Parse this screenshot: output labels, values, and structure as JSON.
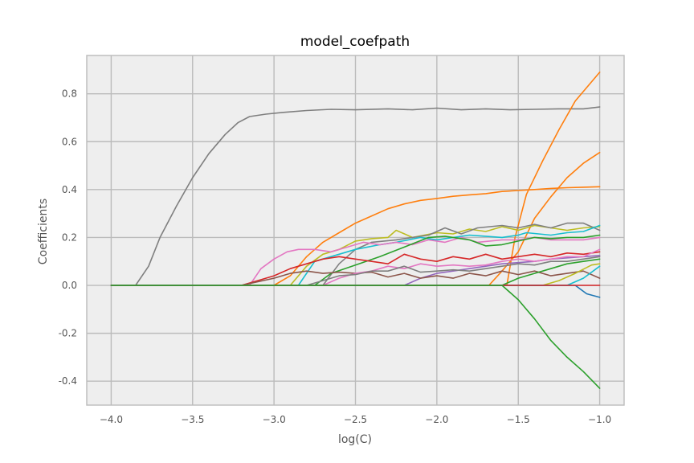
{
  "chart_data": {
    "type": "line",
    "title": "model_coefpath",
    "xlabel": "log(C)",
    "ylabel": "Coefficients",
    "xlim": [
      -4.15,
      -0.85
    ],
    "ylim": [
      -0.5,
      0.96
    ],
    "grid": true,
    "xticks": [
      -4.0,
      -3.5,
      -3.0,
      -2.5,
      -2.0,
      -1.5,
      -1.0
    ],
    "xtick_labels": [
      "−4.0",
      "−3.5",
      "−3.0",
      "−2.5",
      "−2.0",
      "−1.5",
      "−1.0"
    ],
    "yticks": [
      -0.4,
      -0.2,
      0.0,
      0.2,
      0.4,
      0.6,
      0.8
    ],
    "ytick_labels": [
      "-0.4",
      "-0.2",
      "0.0",
      "0.2",
      "0.4",
      "0.6",
      "0.8"
    ],
    "series": [
      {
        "color": "#7f7f7f",
        "points": [
          [
            -4.0,
            0.0
          ],
          [
            -3.85,
            0.0
          ],
          [
            -3.77,
            0.08
          ],
          [
            -3.7,
            0.2
          ],
          [
            -3.6,
            0.33
          ],
          [
            -3.5,
            0.45
          ],
          [
            -3.4,
            0.55
          ],
          [
            -3.3,
            0.63
          ],
          [
            -3.22,
            0.68
          ],
          [
            -3.15,
            0.705
          ],
          [
            -3.05,
            0.715
          ],
          [
            -2.95,
            0.722
          ],
          [
            -2.8,
            0.73
          ],
          [
            -2.65,
            0.735
          ],
          [
            -2.5,
            0.733
          ],
          [
            -2.3,
            0.737
          ],
          [
            -2.15,
            0.733
          ],
          [
            -2.0,
            0.74
          ],
          [
            -1.85,
            0.733
          ],
          [
            -1.7,
            0.737
          ],
          [
            -1.55,
            0.733
          ],
          [
            -1.4,
            0.735
          ],
          [
            -1.25,
            0.737
          ],
          [
            -1.1,
            0.737
          ],
          [
            -1.0,
            0.745
          ]
        ]
      },
      {
        "color": "#ff7f0e",
        "points": [
          [
            -4.0,
            0.0
          ],
          [
            -3.0,
            0.0
          ],
          [
            -2.9,
            0.04
          ],
          [
            -2.8,
            0.12
          ],
          [
            -2.7,
            0.18
          ],
          [
            -2.6,
            0.22
          ],
          [
            -2.5,
            0.26
          ],
          [
            -2.4,
            0.29
          ],
          [
            -2.3,
            0.32
          ],
          [
            -2.2,
            0.34
          ],
          [
            -2.1,
            0.355
          ],
          [
            -2.0,
            0.363
          ],
          [
            -1.9,
            0.372
          ],
          [
            -1.8,
            0.378
          ],
          [
            -1.7,
            0.383
          ],
          [
            -1.6,
            0.392
          ],
          [
            -1.5,
            0.396
          ],
          [
            -1.4,
            0.4
          ],
          [
            -1.3,
            0.405
          ],
          [
            -1.2,
            0.408
          ],
          [
            -1.1,
            0.41
          ],
          [
            -1.0,
            0.412
          ]
        ]
      },
      {
        "color": "#ff7f0e",
        "points": [
          [
            -4.0,
            0.0
          ],
          [
            -1.57,
            0.0
          ],
          [
            -1.52,
            0.2
          ],
          [
            -1.45,
            0.38
          ],
          [
            -1.35,
            0.52
          ],
          [
            -1.25,
            0.65
          ],
          [
            -1.15,
            0.77
          ],
          [
            -1.0,
            0.89
          ]
        ]
      },
      {
        "color": "#ff7f0e",
        "points": [
          [
            -4.0,
            0.0
          ],
          [
            -1.68,
            0.0
          ],
          [
            -1.6,
            0.06
          ],
          [
            -1.5,
            0.14
          ],
          [
            -1.4,
            0.28
          ],
          [
            -1.3,
            0.37
          ],
          [
            -1.2,
            0.45
          ],
          [
            -1.1,
            0.51
          ],
          [
            -1.0,
            0.555
          ]
        ]
      },
      {
        "color": "#bcbd22",
        "points": [
          [
            -4.0,
            0.0
          ],
          [
            -2.9,
            0.0
          ],
          [
            -2.8,
            0.08
          ],
          [
            -2.7,
            0.13
          ],
          [
            -2.6,
            0.15
          ],
          [
            -2.5,
            0.185
          ],
          [
            -2.4,
            0.195
          ],
          [
            -2.3,
            0.2
          ],
          [
            -2.25,
            0.23
          ],
          [
            -2.15,
            0.2
          ],
          [
            -2.0,
            0.22
          ],
          [
            -1.9,
            0.215
          ],
          [
            -1.8,
            0.235
          ],
          [
            -1.7,
            0.225
          ],
          [
            -1.6,
            0.245
          ],
          [
            -1.5,
            0.23
          ],
          [
            -1.4,
            0.25
          ],
          [
            -1.3,
            0.24
          ],
          [
            -1.2,
            0.23
          ],
          [
            -1.1,
            0.24
          ],
          [
            -1.0,
            0.245
          ]
        ]
      },
      {
        "color": "#7f7f7f",
        "points": [
          [
            -4.0,
            0.0
          ],
          [
            -2.7,
            0.0
          ],
          [
            -2.6,
            0.09
          ],
          [
            -2.5,
            0.15
          ],
          [
            -2.4,
            0.18
          ],
          [
            -2.25,
            0.19
          ],
          [
            -2.15,
            0.2
          ],
          [
            -2.05,
            0.21
          ],
          [
            -1.95,
            0.24
          ],
          [
            -1.85,
            0.215
          ],
          [
            -1.75,
            0.24
          ],
          [
            -1.6,
            0.25
          ],
          [
            -1.5,
            0.24
          ],
          [
            -1.4,
            0.255
          ],
          [
            -1.3,
            0.24
          ],
          [
            -1.2,
            0.26
          ],
          [
            -1.1,
            0.26
          ],
          [
            -1.0,
            0.23
          ]
        ]
      },
      {
        "color": "#17becf",
        "points": [
          [
            -4.0,
            0.0
          ],
          [
            -2.85,
            0.0
          ],
          [
            -2.75,
            0.1
          ],
          [
            -2.6,
            0.13
          ],
          [
            -2.5,
            0.15
          ],
          [
            -2.35,
            0.17
          ],
          [
            -2.25,
            0.18
          ],
          [
            -2.1,
            0.2
          ],
          [
            -2.0,
            0.19
          ],
          [
            -1.9,
            0.2
          ],
          [
            -1.8,
            0.21
          ],
          [
            -1.7,
            0.205
          ],
          [
            -1.6,
            0.2
          ],
          [
            -1.5,
            0.21
          ],
          [
            -1.45,
            0.22
          ],
          [
            -1.3,
            0.21
          ],
          [
            -1.2,
            0.22
          ],
          [
            -1.1,
            0.225
          ],
          [
            -1.0,
            0.25
          ]
        ]
      },
      {
        "color": "#e377c2",
        "points": [
          [
            -4.0,
            0.0
          ],
          [
            -3.15,
            0.0
          ],
          [
            -3.08,
            0.07
          ],
          [
            -3.0,
            0.11
          ],
          [
            -2.92,
            0.14
          ],
          [
            -2.85,
            0.15
          ],
          [
            -2.75,
            0.15
          ],
          [
            -2.65,
            0.14
          ],
          [
            -2.55,
            0.16
          ],
          [
            -2.45,
            0.18
          ],
          [
            -2.35,
            0.17
          ],
          [
            -2.25,
            0.18
          ],
          [
            -2.15,
            0.17
          ],
          [
            -2.05,
            0.19
          ],
          [
            -1.95,
            0.18
          ],
          [
            -1.85,
            0.2
          ],
          [
            -1.75,
            0.18
          ],
          [
            -1.6,
            0.19
          ],
          [
            -1.5,
            0.19
          ],
          [
            -1.4,
            0.2
          ],
          [
            -1.3,
            0.19
          ],
          [
            -1.2,
            0.19
          ],
          [
            -1.1,
            0.19
          ],
          [
            -1.0,
            0.2
          ]
        ]
      },
      {
        "color": "#2ca02c",
        "points": [
          [
            -4.0,
            0.0
          ],
          [
            -2.75,
            0.0
          ],
          [
            -2.65,
            0.05
          ],
          [
            -2.5,
            0.085
          ],
          [
            -2.35,
            0.12
          ],
          [
            -2.2,
            0.16
          ],
          [
            -2.05,
            0.2
          ],
          [
            -1.95,
            0.205
          ],
          [
            -1.8,
            0.19
          ],
          [
            -1.7,
            0.165
          ],
          [
            -1.6,
            0.17
          ],
          [
            -1.5,
            0.185
          ],
          [
            -1.4,
            0.2
          ],
          [
            -1.3,
            0.195
          ],
          [
            -1.2,
            0.2
          ],
          [
            -1.1,
            0.2
          ],
          [
            -1.0,
            0.21
          ]
        ]
      },
      {
        "color": "#9467bd",
        "points": [
          [
            -4.0,
            0.0
          ],
          [
            -2.2,
            0.0
          ],
          [
            -2.1,
            0.03
          ],
          [
            -2.0,
            0.05
          ],
          [
            -1.9,
            0.06
          ],
          [
            -1.8,
            0.07
          ],
          [
            -1.7,
            0.08
          ],
          [
            -1.6,
            0.09
          ],
          [
            -1.5,
            0.095
          ],
          [
            -1.4,
            0.1
          ],
          [
            -1.3,
            0.11
          ],
          [
            -1.2,
            0.115
          ],
          [
            -1.1,
            0.12
          ],
          [
            -1.0,
            0.125
          ]
        ]
      },
      {
        "color": "#d62728",
        "points": [
          [
            -4.0,
            0.0
          ],
          [
            -3.2,
            0.0
          ],
          [
            -3.1,
            0.02
          ],
          [
            -3.0,
            0.04
          ],
          [
            -2.9,
            0.07
          ],
          [
            -2.8,
            0.09
          ],
          [
            -2.7,
            0.11
          ],
          [
            -2.6,
            0.12
          ],
          [
            -2.5,
            0.11
          ],
          [
            -2.4,
            0.1
          ],
          [
            -2.3,
            0.09
          ],
          [
            -2.2,
            0.13
          ],
          [
            -2.1,
            0.11
          ],
          [
            -2.0,
            0.1
          ],
          [
            -1.9,
            0.12
          ],
          [
            -1.8,
            0.11
          ],
          [
            -1.7,
            0.13
          ],
          [
            -1.6,
            0.11
          ],
          [
            -1.5,
            0.12
          ],
          [
            -1.4,
            0.13
          ],
          [
            -1.3,
            0.12
          ],
          [
            -1.2,
            0.135
          ],
          [
            -1.1,
            0.13
          ],
          [
            -1.0,
            0.14
          ]
        ]
      },
      {
        "color": "#8c564b",
        "points": [
          [
            -4.0,
            0.0
          ],
          [
            -3.2,
            0.0
          ],
          [
            -3.0,
            0.03
          ],
          [
            -2.9,
            0.05
          ],
          [
            -2.8,
            0.06
          ],
          [
            -2.7,
            0.05
          ],
          [
            -2.6,
            0.055
          ],
          [
            -2.5,
            0.05
          ],
          [
            -2.4,
            0.055
          ],
          [
            -2.3,
            0.035
          ],
          [
            -2.2,
            0.05
          ],
          [
            -2.1,
            0.03
          ],
          [
            -2.0,
            0.04
          ],
          [
            -1.9,
            0.03
          ],
          [
            -1.8,
            0.05
          ],
          [
            -1.7,
            0.04
          ],
          [
            -1.6,
            0.06
          ],
          [
            -1.5,
            0.045
          ],
          [
            -1.4,
            0.06
          ],
          [
            -1.3,
            0.04
          ],
          [
            -1.2,
            0.05
          ],
          [
            -1.1,
            0.06
          ],
          [
            -1.0,
            0.03
          ]
        ]
      },
      {
        "color": "#e377c2",
        "points": [
          [
            -4.0,
            0.0
          ],
          [
            -2.7,
            0.0
          ],
          [
            -2.6,
            0.03
          ],
          [
            -2.5,
            0.05
          ],
          [
            -2.4,
            0.06
          ],
          [
            -2.3,
            0.08
          ],
          [
            -2.2,
            0.07
          ],
          [
            -2.1,
            0.09
          ],
          [
            -2.0,
            0.08
          ],
          [
            -1.9,
            0.085
          ],
          [
            -1.8,
            0.08
          ],
          [
            -1.7,
            0.085
          ],
          [
            -1.6,
            0.1
          ],
          [
            -1.5,
            0.11
          ],
          [
            -1.4,
            0.1
          ],
          [
            -1.3,
            0.11
          ],
          [
            -1.2,
            0.12
          ],
          [
            -1.1,
            0.12
          ],
          [
            -1.0,
            0.15
          ]
        ]
      },
      {
        "color": "#7f7f7f",
        "points": [
          [
            -4.0,
            0.0
          ],
          [
            -2.8,
            0.0
          ],
          [
            -2.7,
            0.02
          ],
          [
            -2.6,
            0.04
          ],
          [
            -2.5,
            0.045
          ],
          [
            -2.4,
            0.06
          ],
          [
            -2.3,
            0.06
          ],
          [
            -2.2,
            0.08
          ],
          [
            -2.1,
            0.055
          ],
          [
            -2.0,
            0.06
          ],
          [
            -1.9,
            0.065
          ],
          [
            -1.8,
            0.06
          ],
          [
            -1.7,
            0.07
          ],
          [
            -1.6,
            0.08
          ],
          [
            -1.5,
            0.09
          ],
          [
            -1.4,
            0.085
          ],
          [
            -1.3,
            0.1
          ],
          [
            -1.2,
            0.1
          ],
          [
            -1.1,
            0.11
          ],
          [
            -1.0,
            0.12
          ]
        ]
      },
      {
        "color": "#2ca02c",
        "points": [
          [
            -4.0,
            0.0
          ],
          [
            -1.6,
            0.0
          ],
          [
            -1.5,
            0.03
          ],
          [
            -1.4,
            0.05
          ],
          [
            -1.3,
            0.07
          ],
          [
            -1.2,
            0.09
          ],
          [
            -1.1,
            0.1
          ],
          [
            -1.0,
            0.11
          ]
        ]
      },
      {
        "color": "#bcbd22",
        "points": [
          [
            -4.0,
            0.0
          ],
          [
            -1.35,
            0.0
          ],
          [
            -1.25,
            0.02
          ],
          [
            -1.15,
            0.05
          ],
          [
            -1.05,
            0.085
          ],
          [
            -1.0,
            0.09
          ]
        ]
      },
      {
        "color": "#17becf",
        "points": [
          [
            -4.0,
            0.0
          ],
          [
            -1.2,
            0.0
          ],
          [
            -1.1,
            0.03
          ],
          [
            -1.0,
            0.08
          ]
        ]
      },
      {
        "color": "#1f77b4",
        "points": [
          [
            -4.0,
            0.0
          ],
          [
            -1.15,
            0.0
          ],
          [
            -1.08,
            -0.035
          ],
          [
            -1.0,
            -0.05
          ]
        ]
      },
      {
        "color": "#d62728",
        "points": [
          [
            -4.0,
            0.0
          ],
          [
            -1.0,
            0.0
          ]
        ]
      },
      {
        "color": "#2ca02c",
        "points": [
          [
            -4.0,
            0.0
          ],
          [
            -1.6,
            0.0
          ],
          [
            -1.5,
            -0.06
          ],
          [
            -1.4,
            -0.14
          ],
          [
            -1.3,
            -0.23
          ],
          [
            -1.2,
            -0.3
          ],
          [
            -1.1,
            -0.36
          ],
          [
            -1.0,
            -0.43
          ]
        ]
      }
    ]
  }
}
